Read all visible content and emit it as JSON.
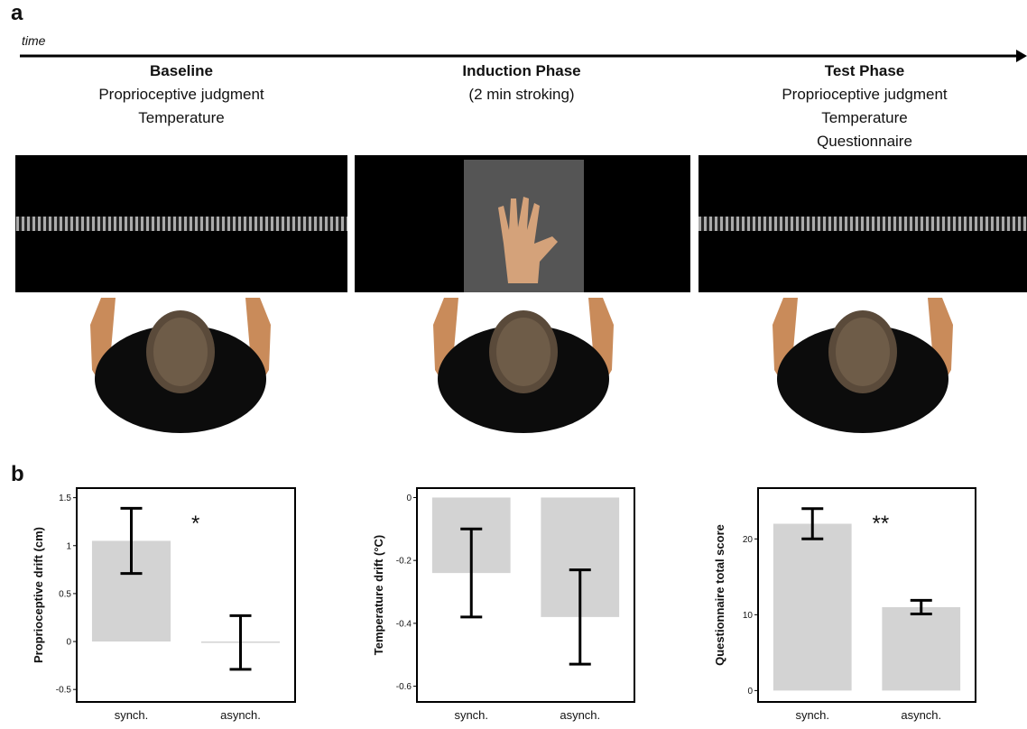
{
  "panel_labels": [
    "a",
    "b"
  ],
  "timeline": {
    "label": "time"
  },
  "phases": [
    {
      "title": "Baseline",
      "lines": [
        "Proprioceptive judgment",
        "Temperature"
      ]
    },
    {
      "title": "Induction Phase",
      "lines": [
        "(2 min stroking)"
      ]
    },
    {
      "title": "Test Phase",
      "lines": [
        "Proprioceptive judgment",
        "Temperature",
        "Questionnaire"
      ]
    }
  ],
  "chart_data": [
    {
      "type": "bar",
      "y_label": "Proprioceptive drift (cm)",
      "categories": [
        "synch.",
        "asynch."
      ],
      "values": [
        1.05,
        -0.01
      ],
      "errors": [
        0.34,
        0.28
      ],
      "color": "#d3d3d3",
      "ylim": [
        -0.63,
        1.6
      ],
      "yticks": [
        -0.5,
        0,
        0.5,
        1,
        1.5
      ],
      "annotation": "*"
    },
    {
      "type": "bar",
      "y_label": "Temperature drift (°C)",
      "categories": [
        "synch.",
        "asynch."
      ],
      "values": [
        -0.24,
        -0.38
      ],
      "errors": [
        0.14,
        0.15
      ],
      "color": "#d3d3d3",
      "ylim": [
        -0.65,
        0.03
      ],
      "yticks": [
        -0.6,
        -0.4,
        -0.2,
        0
      ]
    },
    {
      "type": "bar",
      "y_label": "Questionnaire total score",
      "categories": [
        "synch.",
        "asynch."
      ],
      "values": [
        22,
        11
      ],
      "errors": [
        2,
        0.9
      ],
      "color": "#d3d3d3",
      "ylim": [
        -1.5,
        26.7
      ],
      "yticks": [
        0,
        10,
        20
      ],
      "annotation": "**"
    }
  ]
}
